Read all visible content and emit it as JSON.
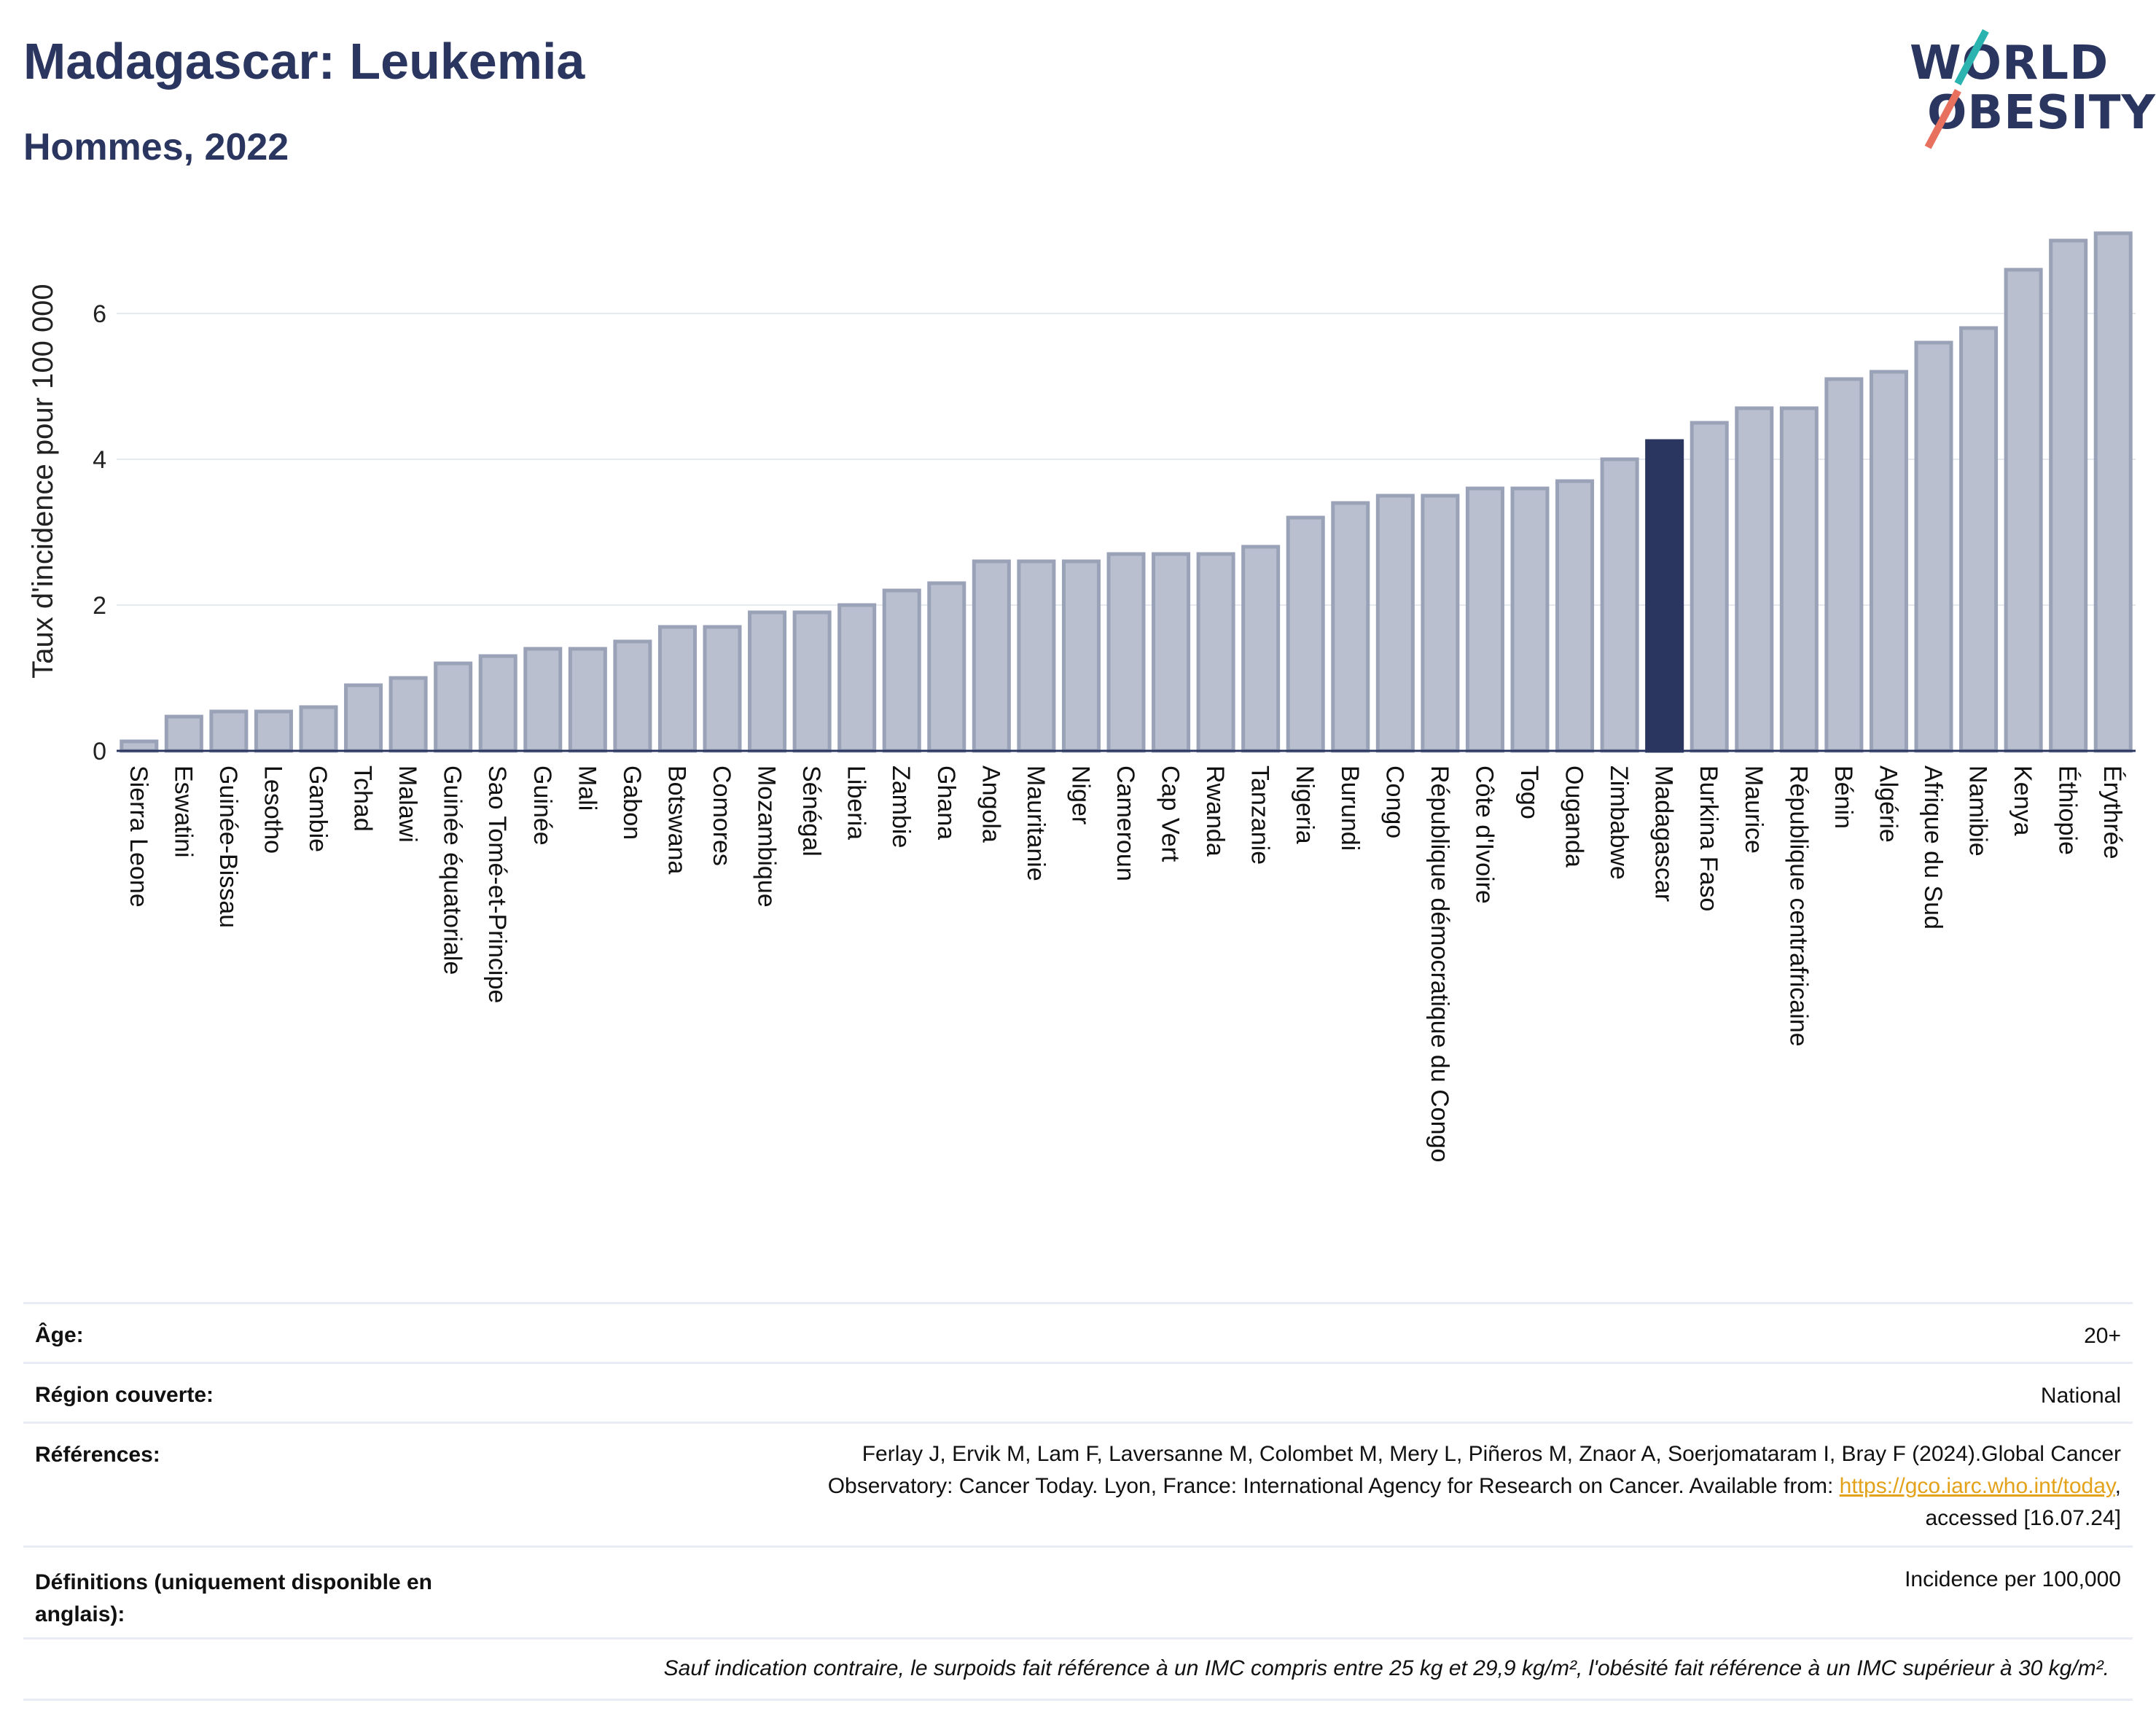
{
  "header": {
    "title": "Madagascar: Leukemia",
    "subtitle": "Hommes, 2022",
    "logo_line1": "WORLD",
    "logo_line2": "OBESITY"
  },
  "chart_data": {
    "type": "bar",
    "title": "Madagascar: Leukemia",
    "subtitle": "Hommes, 2022",
    "xlabel": "",
    "ylabel": "Taux d'incidence pour 100 000",
    "ylim": [
      0,
      7.2
    ],
    "yticks": [
      0,
      2,
      4,
      6
    ],
    "grid": true,
    "highlight": "Madagascar",
    "colors": {
      "bar": "#b9bfcf",
      "bar_edge": "#9aa2b8",
      "highlight": "#2a365f",
      "grid": "#e6e9f0"
    },
    "categories": [
      "Sierra Leone",
      "Eswatini",
      "Guinée-Bissau",
      "Lesotho",
      "Gambie",
      "Tchad",
      "Malawi",
      "Guinée équatoriale",
      "Sao Tomé-et-Principe",
      "Guinée",
      "Mali",
      "Gabon",
      "Botswana",
      "Comores",
      "Mozambique",
      "Sénégal",
      "Liberia",
      "Zambie",
      "Ghana",
      "Angola",
      "Mauritanie",
      "Niger",
      "Cameroun",
      "Cap Vert",
      "Rwanda",
      "Tanzanie",
      "Nigeria",
      "Burundi",
      "Congo",
      "République démocratique du Congo",
      "Côte d'Ivoire",
      "Togo",
      "Ouganda",
      "Zimbabwe",
      "Madagascar",
      "Burkina Faso",
      "Maurice",
      "République centrafricaine",
      "Bénin",
      "Algérie",
      "Afrique du Sud",
      "Namibie",
      "Kenya",
      "Éthiopie",
      "Érythrée"
    ],
    "values": [
      0.13,
      0.47,
      0.54,
      0.54,
      0.6,
      0.9,
      1.0,
      1.2,
      1.3,
      1.4,
      1.4,
      1.5,
      1.7,
      1.7,
      1.9,
      1.9,
      2.0,
      2.2,
      2.3,
      2.6,
      2.6,
      2.6,
      2.7,
      2.7,
      2.7,
      2.8,
      3.2,
      3.4,
      3.5,
      3.5,
      3.6,
      3.6,
      3.7,
      4.0,
      4.25,
      4.5,
      4.7,
      4.7,
      5.1,
      5.2,
      5.6,
      5.8,
      6.6,
      7.0,
      7.1
    ]
  },
  "meta": {
    "age_label": "Âge:",
    "age_value": "20+",
    "region_label": "Région couverte:",
    "region_value": "National",
    "refs_label": "Références:",
    "refs_line1": "Ferlay J, Ervik M, Lam F, Laversanne M, Colombet M, Mery L, Piñeros M, Znaor A, Soerjomataram I, Bray F (2024).Global Cancer",
    "refs_line2_pre": "Observatory: Cancer Today. Lyon, France: International Agency for Research on Cancer. Available from: ",
    "refs_link": "https://gco.iarc.who.int/today",
    "refs_line2_post": ",",
    "refs_line3": "accessed [16.07.24]",
    "defs_label_line1": "Définitions (uniquement disponible en",
    "defs_label_line2": "anglais):",
    "defs_value": "Incidence per 100,000",
    "note": "Sauf indication contraire, le surpoids fait référence à un IMC compris entre 25 kg et 29,9 kg/m², l'obésité fait référence à un IMC supérieur à 30 kg/m²."
  }
}
